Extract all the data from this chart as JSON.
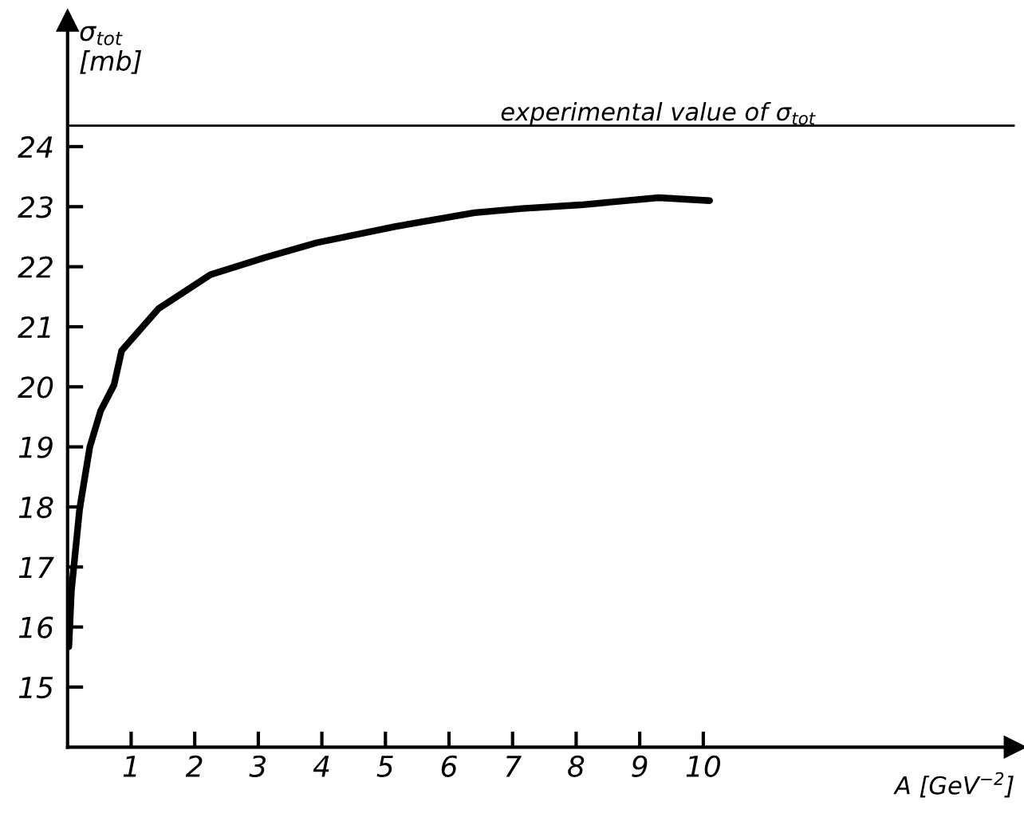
{
  "chart_data": {
    "type": "line",
    "xlabel": "A [GeV$^{−2}$]",
    "ylabel": "σ$_{tot}$\n[mb]",
    "x": [
      0.02,
      0.06,
      0.19,
      0.35,
      0.52,
      0.73,
      0.85,
      1.43,
      2.25,
      3.1,
      3.92,
      5.16,
      6.4,
      7.15,
      8.07,
      9.3,
      10.1
    ],
    "series": [
      {
        "color": "#000000",
        "values": [
          15.67,
          16.6,
          17.97,
          19.0,
          19.6,
          20.03,
          20.6,
          21.3,
          21.87,
          22.15,
          22.4,
          22.67,
          22.9,
          22.97,
          23.03,
          23.15,
          23.1
        ]
      }
    ],
    "xlim": [
      0,
      14.9
    ],
    "ylim": [
      14,
      26.1
    ],
    "xticks": [
      1,
      2,
      3,
      4,
      5,
      6,
      7,
      8,
      9,
      10
    ],
    "yticks": [
      15,
      16,
      17,
      18,
      19,
      20,
      21,
      22,
      23,
      24
    ],
    "ref_lines": [
      {
        "axis": "y",
        "value": 24.35,
        "label": "experimental value of σ$_{tot}$",
        "color": "#000000",
        "line_style": "solid"
      }
    ],
    "grid": false,
    "marker": "none",
    "line_style": "solid"
  }
}
